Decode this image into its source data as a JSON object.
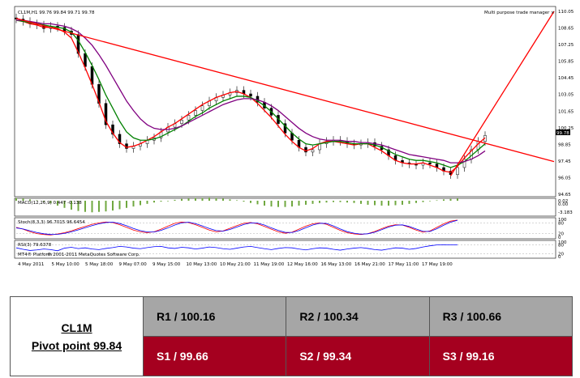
{
  "chart_data": [
    {
      "type": "line",
      "title": "CL1M,H1  99.76 99.84 99.71 99.78",
      "annotation": "Multi purpose trade manager",
      "current_price_label": "99.78",
      "y_ticks": [
        "110.05",
        "108.65",
        "107.25",
        "105.85",
        "104.45",
        "103.05",
        "101.65",
        "100.25",
        "98.85",
        "97.45",
        "96.05",
        "94.65"
      ],
      "ylim": [
        94.65,
        110.05
      ],
      "x_ticks": [
        "4 May 2011",
        "5 May 10:00",
        "5 May 18:00",
        "9 May 07:00",
        "9 May 15:00",
        "10 May 13:00",
        "10 May 21:00",
        "11 May 19:00",
        "12 May 16:00",
        "16 May 13:00",
        "16 May 21:00",
        "17 May 11:00",
        "17 May 19:00"
      ],
      "close": [
        109.4,
        109.2,
        109.0,
        108.9,
        108.6,
        108.8,
        108.7,
        108.4,
        108.1,
        106.5,
        105.4,
        103.9,
        102.3,
        100.5,
        99.7,
        98.9,
        98.5,
        98.7,
        98.9,
        99.2,
        99.4,
        99.9,
        100.3,
        100.6,
        100.9,
        101.3,
        101.7,
        102.1,
        102.5,
        102.8,
        103.0,
        103.2,
        103.4,
        103.1,
        102.9,
        102.4,
        101.9,
        101.3,
        100.6,
        99.8,
        99.2,
        98.6,
        98.2,
        98.4,
        98.9,
        99.1,
        99.2,
        99.1,
        98.9,
        98.8,
        98.9,
        99.0,
        98.7,
        98.4,
        97.9,
        97.5,
        97.3,
        97.2,
        97.1,
        97.3,
        97.2,
        96.9,
        96.6,
        96.3,
        96.9,
        97.6,
        98.4,
        99.1,
        99.6
      ],
      "series": [
        {
          "name": "",
          "color": "#ff0000",
          "values": [
            109.3,
            109.2,
            109.0,
            108.9,
            108.7,
            108.7,
            108.6,
            108.3,
            107.8,
            106.6,
            105.3,
            103.9,
            102.4,
            100.8,
            99.8,
            99.0,
            98.6,
            98.7,
            98.9,
            99.2,
            99.5,
            99.9,
            100.3,
            100.6,
            101.0,
            101.4,
            101.8,
            102.2,
            102.5,
            102.8,
            103.0,
            103.2,
            103.3,
            103.1,
            102.8,
            102.3,
            101.7,
            101.1,
            100.4,
            99.7,
            99.1,
            98.6,
            98.3,
            98.5,
            98.9,
            99.1,
            99.1,
            99.0,
            98.9,
            98.8,
            98.9,
            98.9,
            98.6,
            98.3,
            97.9,
            97.5,
            97.3,
            97.2,
            97.2,
            97.3,
            97.1,
            96.9,
            96.6,
            96.5,
            97.0,
            97.7,
            98.3,
            98.9,
            99.4
          ]
        },
        {
          "name": "",
          "color": "#008000",
          "values": [
            109.3,
            109.2,
            109.1,
            109.0,
            108.9,
            108.8,
            108.7,
            108.6,
            108.3,
            107.6,
            106.6,
            105.5,
            104.3,
            103.0,
            101.9,
            100.8,
            99.9,
            99.4,
            99.2,
            99.2,
            99.3,
            99.5,
            99.8,
            100.1,
            100.4,
            100.8,
            101.2,
            101.5,
            101.9,
            102.2,
            102.5,
            102.7,
            102.9,
            102.9,
            102.8,
            102.5,
            102.1,
            101.6,
            101.0,
            100.4,
            99.8,
            99.3,
            98.9,
            98.8,
            98.9,
            99.0,
            99.1,
            99.1,
            99.0,
            98.9,
            98.9,
            98.9,
            98.8,
            98.6,
            98.3,
            98.0,
            97.8,
            97.6,
            97.5,
            97.5,
            97.4,
            97.3,
            97.1,
            96.9,
            97.1,
            97.4,
            97.9,
            98.4,
            98.9
          ]
        },
        {
          "name": "",
          "color": "#800080",
          "values": [
            109.3,
            109.3,
            109.2,
            109.1,
            109.0,
            109.0,
            108.9,
            108.8,
            108.6,
            108.3,
            107.8,
            107.2,
            106.4,
            105.5,
            104.5,
            103.5,
            102.5,
            101.7,
            101.0,
            100.5,
            100.2,
            100.1,
            100.1,
            100.2,
            100.4,
            100.7,
            101.0,
            101.3,
            101.6,
            101.9,
            102.2,
            102.4,
            102.6,
            102.7,
            102.7,
            102.6,
            102.4,
            102.1,
            101.7,
            101.2,
            100.7,
            100.2,
            99.8,
            99.5,
            99.3,
            99.2,
            99.2,
            99.2,
            99.1,
            99.1,
            99.0,
            99.0,
            98.9,
            98.8,
            98.6,
            98.4,
            98.2,
            98.0,
            97.9,
            97.8,
            97.7,
            97.6,
            97.5,
            97.3,
            97.3,
            97.4,
            97.6,
            97.9,
            98.3
          ]
        }
      ],
      "trendlines": [
        {
          "color": "#ff0000",
          "from": [
            0,
            109.45
          ],
          "to": [
            78,
            97.4
          ]
        },
        {
          "color": "#ff0000",
          "from": [
            63,
            96.2
          ],
          "to": [
            78,
            110.05
          ]
        }
      ]
    },
    {
      "type": "bar",
      "title": "MACD(12,26,9) 0.447 -0.138",
      "y_ticks": [
        "0.02",
        "0.00",
        "-3.183"
      ],
      "values": [
        0.6,
        0.5,
        0.3,
        0.1,
        -0.2,
        -0.6,
        -1.1,
        -1.6,
        -2.0,
        -2.3,
        -2.5,
        -2.6,
        -2.5,
        -2.4,
        -2.2,
        -1.9,
        -1.6,
        -1.3,
        -1.0,
        -0.7,
        -0.4,
        -0.2,
        0.0,
        0.2,
        0.4,
        0.5,
        0.6,
        0.6,
        0.7,
        0.6,
        0.5,
        0.3,
        0.1,
        -0.2,
        -0.5,
        -0.8,
        -1.1,
        -1.3,
        -1.4,
        -1.4,
        -1.3,
        -1.1,
        -0.9,
        -0.7,
        -0.5,
        -0.4,
        -0.3,
        -0.3,
        -0.4,
        -0.5,
        -0.7,
        -0.9,
        -1.0,
        -1.1,
        -1.1,
        -1.0,
        -0.9,
        -0.7,
        -0.5,
        -0.3,
        -0.1,
        0.1,
        0.3,
        0.4,
        0.5
      ]
    },
    {
      "type": "line",
      "title": "Stoch(8,3,3) 96.7015 96.6454",
      "y_ticks": [
        "100",
        "80",
        "20",
        "0"
      ],
      "series": [
        {
          "name": "",
          "color": "#ff0000",
          "values": [
            55,
            45,
            30,
            20,
            15,
            12,
            18,
            25,
            35,
            48,
            60,
            72,
            80,
            85,
            82,
            70,
            55,
            40,
            30,
            25,
            30,
            45,
            62,
            78,
            85,
            82,
            70,
            55,
            40,
            30,
            35,
            50,
            65,
            78,
            82,
            75,
            60,
            45,
            30,
            22,
            28,
            45,
            62,
            75,
            80,
            72,
            55,
            38,
            25,
            18,
            15,
            20,
            32,
            48,
            62,
            70,
            68,
            55,
            40,
            28,
            35,
            55,
            75,
            90,
            96
          ]
        },
        {
          "name": "",
          "color": "#0000ff",
          "values": [
            52,
            46,
            36,
            26,
            19,
            15,
            16,
            21,
            30,
            41,
            53,
            65,
            75,
            82,
            84,
            77,
            64,
            49,
            37,
            29,
            29,
            38,
            52,
            68,
            80,
            84,
            76,
            63,
            49,
            37,
            34,
            43,
            57,
            71,
            80,
            79,
            68,
            52,
            38,
            27,
            26,
            37,
            53,
            68,
            78,
            77,
            63,
            46,
            31,
            22,
            17,
            19,
            28,
            42,
            57,
            67,
            69,
            60,
            46,
            33,
            32,
            47,
            67,
            84,
            95
          ]
        }
      ]
    },
    {
      "type": "line",
      "title": "RSI(3) 79.6378",
      "y_ticks": [
        "100",
        "80",
        "20",
        "0"
      ],
      "series": [
        {
          "name": "",
          "color": "#0000ff",
          "values": [
            60,
            50,
            42,
            46,
            52,
            48,
            40,
            58,
            64,
            55,
            60,
            52,
            48,
            56,
            62,
            70,
            66,
            58,
            54,
            62,
            68,
            70,
            60,
            56,
            64,
            60,
            52,
            58,
            66,
            62,
            54,
            50,
            58,
            66,
            70,
            62,
            54,
            48,
            56,
            62,
            60,
            52,
            46,
            54,
            60,
            58,
            50,
            44,
            52,
            58,
            62,
            56,
            48,
            44,
            52,
            60,
            58,
            50,
            56,
            66,
            74,
            80,
            82,
            80,
            80
          ]
        }
      ]
    }
  ],
  "copyright": "© 2001-2011 MetaQuotes Software Corp.",
  "platform": "MT4® Platform",
  "pivot_table": {
    "symbol": "CL1M",
    "pivot_label": "Pivot point 99.84",
    "resistance": [
      "R1 / 100.16",
      "R2  / 100.34",
      "R3 / 100.66"
    ],
    "support": [
      "S1 / 99.66",
      "S2 /  99.34",
      "S3 /  99.16"
    ]
  },
  "colors": {
    "resistance_bg": "#a6a6a6",
    "support_bg": "#a5001f",
    "trendline": "#ff0000"
  }
}
